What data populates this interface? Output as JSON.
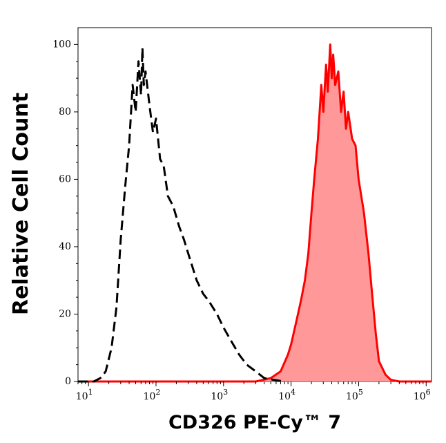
{
  "chart_data": {
    "type": "area",
    "title": "",
    "xlabel": "CD326 PE-Cy™ 7",
    "ylabel": "Relative Cell Count",
    "x_scale": "log",
    "xlim": [
      7,
      1200000
    ],
    "ylim": [
      0,
      105
    ],
    "grid": false,
    "legend": "none",
    "y_ticks": [
      {
        "value": 0,
        "label": "0"
      },
      {
        "value": 20,
        "label": "20"
      },
      {
        "value": 40,
        "label": "40"
      },
      {
        "value": 60,
        "label": "60"
      },
      {
        "value": 80,
        "label": "80"
      },
      {
        "value": 100,
        "label": "100"
      }
    ],
    "x_ticks": [
      {
        "value": 10,
        "base": "10",
        "exp": "1"
      },
      {
        "value": 100,
        "base": "10",
        "exp": "2"
      },
      {
        "value": 1000,
        "base": "10",
        "exp": "3"
      },
      {
        "value": 10000,
        "base": "10",
        "exp": "4"
      },
      {
        "value": 100000,
        "base": "10",
        "exp": "5"
      },
      {
        "value": 1000000,
        "base": "10",
        "exp": "6"
      }
    ],
    "series": [
      {
        "style": "dashed-outline",
        "color": "#000000",
        "x": [
          7,
          12,
          15,
          18,
          22,
          26,
          30,
          35,
          40,
          45,
          50,
          55,
          60,
          63,
          66,
          70,
          80,
          90,
          100,
          115,
          130,
          150,
          180,
          220,
          260,
          300,
          400,
          500,
          600,
          800,
          1000,
          1300,
          1700,
          2200,
          3000,
          4000,
          5500,
          8000
        ],
        "y": [
          0,
          0,
          1,
          3,
          10,
          22,
          42,
          58,
          70,
          88,
          80,
          95,
          85,
          99,
          88,
          92,
          82,
          74,
          78,
          66,
          64,
          55,
          52,
          46,
          42,
          38,
          30,
          26,
          24,
          20,
          16,
          12,
          8,
          5,
          3,
          1,
          0.5,
          0
        ]
      },
      {
        "style": "filled",
        "color": "#ff0000",
        "fill": "#ff9999",
        "x": [
          7,
          3000,
          5000,
          7000,
          9000,
          10000,
          12000,
          14000,
          16000,
          18000,
          20000,
          22000,
          25000,
          28000,
          30000,
          33000,
          35000,
          38000,
          40000,
          42000,
          45000,
          50000,
          55000,
          60000,
          65000,
          70000,
          80000,
          90000,
          100000,
          120000,
          140000,
          160000,
          180000,
          200000,
          250000,
          300000,
          400000,
          600000,
          1200000
        ],
        "y": [
          0,
          0,
          1,
          3,
          8,
          11,
          18,
          24,
          30,
          38,
          50,
          60,
          72,
          88,
          80,
          94,
          86,
          100,
          90,
          97,
          88,
          92,
          80,
          86,
          75,
          80,
          72,
          70,
          60,
          50,
          38,
          25,
          14,
          6,
          2,
          0.5,
          0,
          0,
          0
        ]
      }
    ]
  }
}
